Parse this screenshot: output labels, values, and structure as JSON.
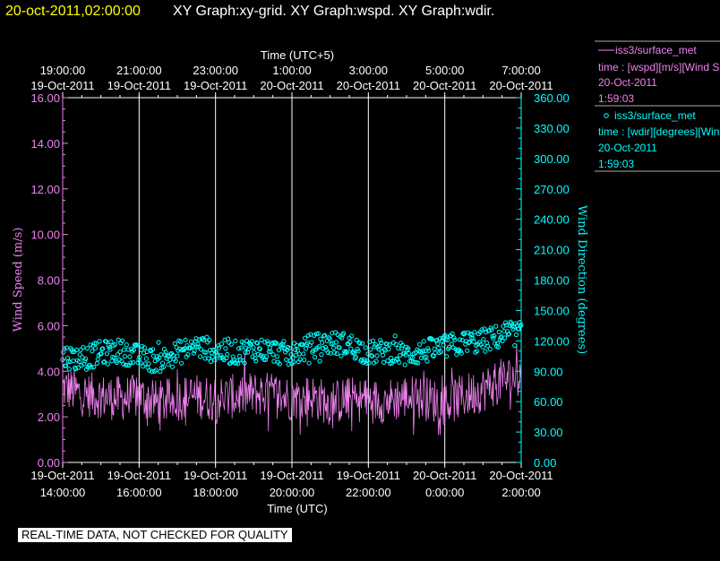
{
  "header": {
    "timestamp": "20-oct-2011,02:00:00",
    "title": "XY Graph:xy-grid.  XY Graph:wspd.  XY Graph:wdir."
  },
  "colors": {
    "background": "#000000",
    "timestamp": "#ffff00",
    "wspd": "#ee82ee",
    "wdir": "#00ffff",
    "grid": "#ffffff"
  },
  "legend": [
    {
      "marker": "line",
      "name": "iss3/surface_met",
      "desc": "time : [wspd][m/s][Wind Speed (m/s)]",
      "date": "20-Oct-2011",
      "time": "1:59:03"
    },
    {
      "marker": "circle",
      "name": "iss3/surface_met",
      "desc": "time : [wdir][degrees][Wind Direction (degrees)]",
      "date": "20-Oct-2011",
      "time": "1:59:03"
    }
  ],
  "chart_data": {
    "type": "line",
    "x_axis_bottom": {
      "label": "Time (UTC)",
      "range": [
        "19-Oct-2011 14:00",
        "20-Oct-2011 02:00"
      ],
      "ticks": [
        {
          "date": "19-Oct-2011",
          "time": "14:00:00"
        },
        {
          "date": "19-Oct-2011",
          "time": "16:00:00"
        },
        {
          "date": "19-Oct-2011",
          "time": "18:00:00"
        },
        {
          "date": "19-Oct-2011",
          "time": "20:00:00"
        },
        {
          "date": "19-Oct-2011",
          "time": "22:00:00"
        },
        {
          "date": "20-Oct-2011",
          "time": "0:00:00"
        },
        {
          "date": "20-Oct-2011",
          "time": "2:00:00"
        }
      ]
    },
    "x_axis_top": {
      "label": "Time (UTC+5)",
      "ticks": [
        {
          "time": "19:00:00",
          "date": "19-Oct-2011"
        },
        {
          "time": "21:00:00",
          "date": "19-Oct-2011"
        },
        {
          "time": "23:00:00",
          "date": "19-Oct-2011"
        },
        {
          "time": "1:00:00",
          "date": "20-Oct-2011"
        },
        {
          "time": "3:00:00",
          "date": "20-Oct-2011"
        },
        {
          "time": "5:00:00",
          "date": "20-Oct-2011"
        },
        {
          "time": "7:00:00",
          "date": "20-Oct-2011"
        }
      ]
    },
    "y_left": {
      "label": "Wind Speed (m/s)",
      "range": [
        0,
        16
      ],
      "ticks": [
        "0.00",
        "2.00",
        "4.00",
        "6.00",
        "8.00",
        "10.00",
        "12.00",
        "14.00",
        "16.00"
      ]
    },
    "y_right": {
      "label": "Wind Direction (degrees)",
      "range": [
        0,
        360
      ],
      "ticks": [
        "0.00",
        "30.00",
        "60.00",
        "90.00",
        "120.00",
        "150.00",
        "180.00",
        "210.00",
        "240.00",
        "270.00",
        "300.00",
        "330.00",
        "360.00"
      ]
    },
    "grid": "vertical",
    "series": [
      {
        "name": "iss3/surface_met",
        "field": "wspd",
        "style": "line",
        "axis": "left",
        "x_hours_utc": [
          14.0,
          14.5,
          15.0,
          15.5,
          16.0,
          16.5,
          17.0,
          17.5,
          18.0,
          18.5,
          19.0,
          19.5,
          20.0,
          20.5,
          21.0,
          21.5,
          22.0,
          22.5,
          23.0,
          23.5,
          24.0,
          24.5,
          25.0,
          25.5,
          26.0
        ],
        "values": [
          3.3,
          3.0,
          2.9,
          2.8,
          2.9,
          2.6,
          2.8,
          2.9,
          2.8,
          2.9,
          3.0,
          3.0,
          2.8,
          2.9,
          2.6,
          2.8,
          2.7,
          2.7,
          2.9,
          2.8,
          2.6,
          2.9,
          3.2,
          3.6,
          3.8
        ]
      },
      {
        "name": "iss3/surface_met",
        "field": "wdir",
        "style": "circle",
        "axis": "right",
        "x_hours_utc": [
          14.0,
          14.5,
          15.0,
          15.5,
          16.0,
          16.5,
          17.0,
          17.5,
          18.0,
          18.5,
          19.0,
          19.5,
          20.0,
          20.5,
          21.0,
          21.5,
          22.0,
          22.5,
          23.0,
          23.5,
          24.0,
          24.5,
          25.0,
          25.5,
          26.0
        ],
        "values": [
          105,
          102,
          108,
          110,
          104,
          100,
          108,
          115,
          110,
          108,
          112,
          110,
          106,
          115,
          118,
          116,
          108,
          110,
          106,
          110,
          114,
          118,
          120,
          125,
          128
        ]
      }
    ]
  },
  "footer": {
    "disclaimer": "REAL-TIME DATA, NOT CHECKED FOR QUALITY"
  }
}
